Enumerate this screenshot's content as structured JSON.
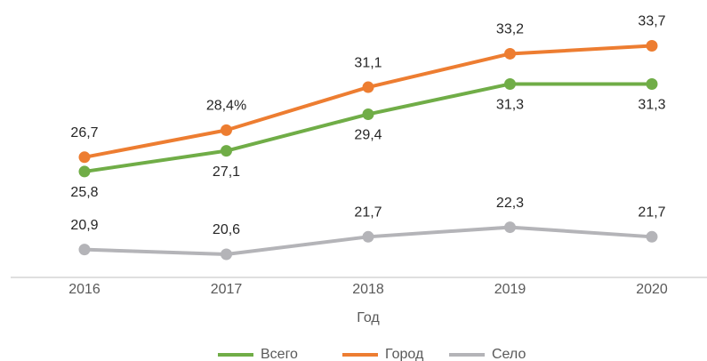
{
  "chart_data": {
    "type": "line",
    "categories": [
      "2016",
      "2017",
      "2018",
      "2019",
      "2020"
    ],
    "x_label": "Год",
    "series": [
      {
        "name": "Всего",
        "color": "#70ad47",
        "values": [
          25.8,
          27.1,
          29.4,
          31.3,
          31.3
        ],
        "value_labels": [
          "25,8",
          "27,1",
          "29,4",
          "31,3",
          "31,3"
        ],
        "label_position": "below"
      },
      {
        "name": "Город",
        "color": "#ed7d31",
        "values": [
          26.7,
          28.4,
          31.1,
          33.2,
          33.7
        ],
        "value_labels": [
          "26,7",
          "28,4%",
          "31,1",
          "33,2",
          "33,7"
        ],
        "label_position": "above"
      },
      {
        "name": "Село",
        "color": "#b4b4b8",
        "values": [
          20.9,
          20.6,
          21.7,
          22.3,
          21.7
        ],
        "value_labels": [
          "20,9",
          "20,6",
          "21,7",
          "22,3",
          "21,7"
        ],
        "label_position": "above"
      }
    ],
    "legend": "bottom"
  }
}
